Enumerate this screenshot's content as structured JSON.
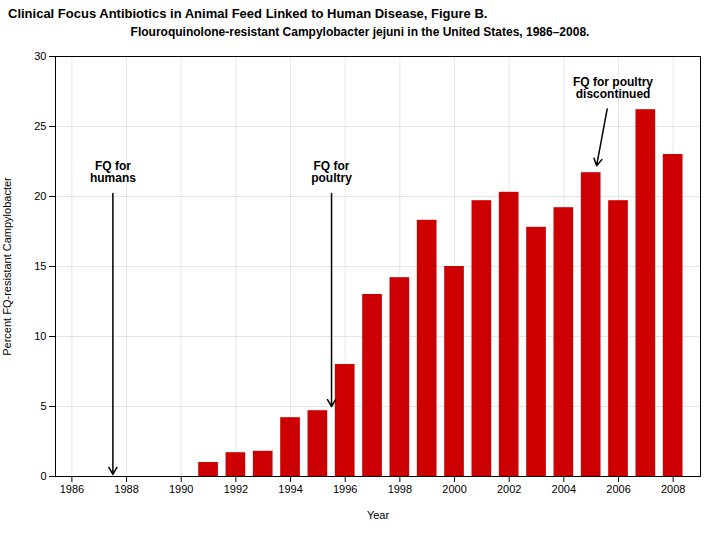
{
  "chart_data": {
    "type": "bar",
    "title": "Clinical Focus Antibiotics in Animal Feed Linked to Human Disease, Figure B.",
    "subtitle": "Flouroquinolone-resistant Campylobacter jejuni in the United States, 1986–2008.",
    "x": [
      1986,
      1987,
      1988,
      1989,
      1990,
      1991,
      1992,
      1993,
      1994,
      1995,
      1996,
      1997,
      1998,
      1999,
      2000,
      2001,
      2002,
      2003,
      2004,
      2005,
      2006,
      2007,
      2008
    ],
    "values": [
      0,
      0,
      0,
      0,
      0,
      1.0,
      1.7,
      1.8,
      4.2,
      4.7,
      8.0,
      13.0,
      14.2,
      18.3,
      15.0,
      19.7,
      20.3,
      17.8,
      19.2,
      21.7,
      19.7,
      26.2,
      23.0
    ],
    "color": "#cc0000",
    "xlabel": "Year",
    "ylabel": "Percent FQ-resistant Campylobacter",
    "xlim": [
      1985.4,
      2009.0
    ],
    "xticks": [
      1986,
      1988,
      1990,
      1992,
      1994,
      1996,
      1998,
      2000,
      2002,
      2004,
      2006,
      2008
    ],
    "ylim": [
      0,
      30
    ],
    "yticks": [
      0,
      5,
      10,
      15,
      20,
      25,
      30
    ],
    "grid": true,
    "annotations": [
      {
        "text": "FQ for\nhumans",
        "x": 1987.5,
        "y": 22.5,
        "arrow_x": 1987.5,
        "arrow_y": 0.15
      },
      {
        "text": "FQ for\npoultry",
        "x": 1995.5,
        "y": 22.5,
        "arrow_x": 1995.5,
        "arrow_y": 5.0
      },
      {
        "text": "FQ for poultry\ndiscontinued",
        "x": 2005.8,
        "y": 28.5,
        "arrow_x": 2005.2,
        "arrow_y": 22.2
      }
    ]
  }
}
